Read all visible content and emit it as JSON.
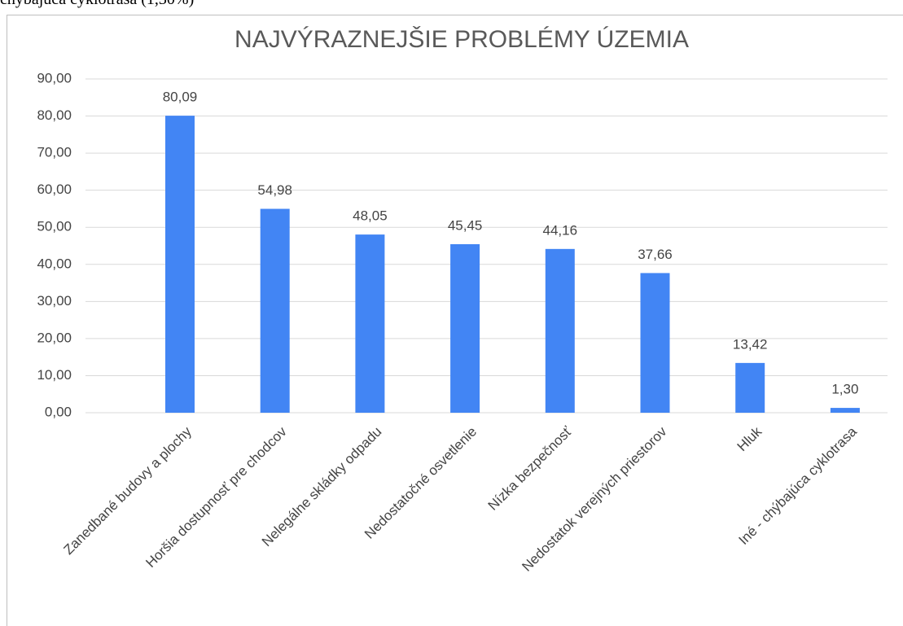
{
  "page_text": "chýbajúca cyklotrasa (1,30%)",
  "chart_data": {
    "type": "bar",
    "title": "NAJVÝRAZNEJŠIE PROBLÉMY ÚZEMIA",
    "categories": [
      "Zanedbané budovy a plochy",
      "Horšia dostupnosť pre chodcov",
      "Nelegálne skládky odpadu",
      "Nedostatočné osvetlenie",
      "Nízka bezpečnosť",
      "Nedostatok verejných priestorov",
      "Hluk",
      "Iné - chýbajúca cyklotrasa"
    ],
    "values": [
      80.09,
      54.98,
      48.05,
      45.45,
      44.16,
      37.66,
      13.42,
      1.3
    ],
    "value_labels": [
      "80,09",
      "54,98",
      "48,05",
      "45,45",
      "44,16",
      "37,66",
      "13,42",
      "1,30"
    ],
    "color": "#4285f4",
    "ylim": [
      0,
      90
    ],
    "yticks": [
      {
        "value": 0,
        "label": "0,00"
      },
      {
        "value": 10,
        "label": "10,00"
      },
      {
        "value": 20,
        "label": "20,00"
      },
      {
        "value": 30,
        "label": "30,00"
      },
      {
        "value": 40,
        "label": "40,00"
      },
      {
        "value": 50,
        "label": "50,00"
      },
      {
        "value": 60,
        "label": "60,00"
      },
      {
        "value": 70,
        "label": "70,00"
      },
      {
        "value": 80,
        "label": "80,00"
      },
      {
        "value": 90,
        "label": "90,00"
      }
    ],
    "grid": true
  }
}
